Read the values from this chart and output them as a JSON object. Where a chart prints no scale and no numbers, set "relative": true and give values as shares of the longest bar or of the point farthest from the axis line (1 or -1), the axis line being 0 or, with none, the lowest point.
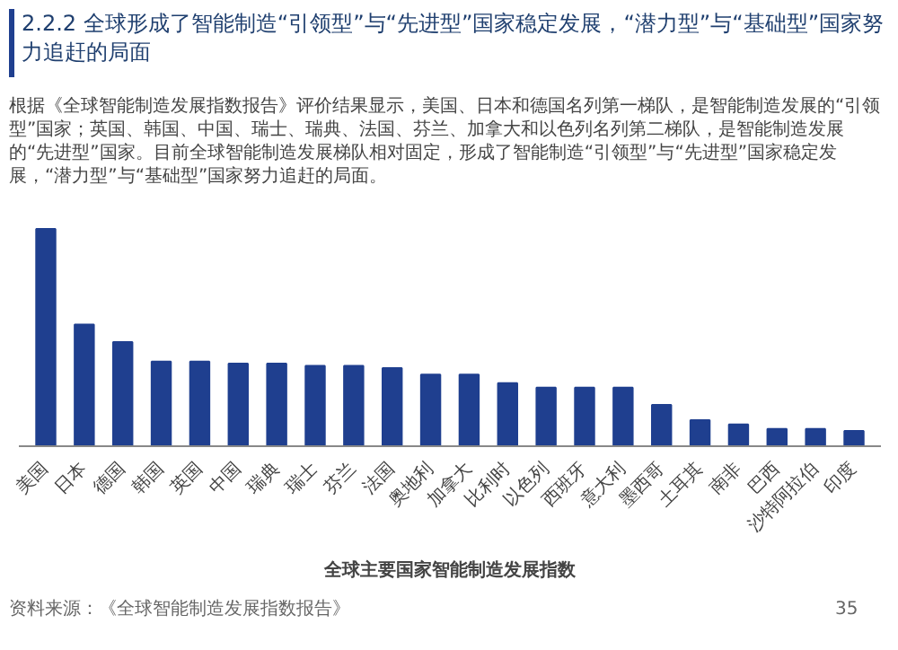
{
  "chart_data": {
    "type": "bar",
    "title": "全球主要国家智能制造发展指数",
    "annotations": [
      "2.2.2 全球形成了智能制造“引领型”与“先进型”国家稳定发展，“潜力型”与“基础型”国家努力追赶的局面",
      "根据《全球智能制造发展指数报告》评价结果显示，美国、日本和德国名列第一梯队，是智能制造发展的“引领型”国家；英国、韩国、中国、瑞士、瑞典、法国、芬兰、加拿大和以色列名列第二梯队，是智能制造发展的“先进型”国家。目前全球智能制造发展梯队相对固定，形成了智能制造“引领型”与“先进型”国家稳定发展，“潜力型”与“基础型”国家努力追赶的局面。",
      "资料来源：《全球智能制造发展指数报告》",
      "35"
    ],
    "categories": [
      "美国",
      "日本",
      "德国",
      "韩国",
      "英国",
      "中国",
      "瑞典",
      "瑞士",
      "芬兰",
      "法国",
      "奥地利",
      "加拿大",
      "比利时",
      "以色列",
      "西班牙",
      "意大利",
      "墨西哥",
      "土耳其",
      "南非",
      "巴西",
      "沙特阿拉伯",
      "印度"
    ],
    "values": [
      1,
      0.56,
      0.48,
      0.39,
      0.39,
      0.38,
      0.38,
      0.37,
      0.37,
      0.36,
      0.33,
      0.33,
      0.29,
      0.27,
      0.27,
      0.27,
      0.19,
      0.12,
      0.1,
      0.08,
      0.08,
      0.07
    ],
    "color": "#1f3f8f",
    "relative": true,
    "grid": false
  }
}
